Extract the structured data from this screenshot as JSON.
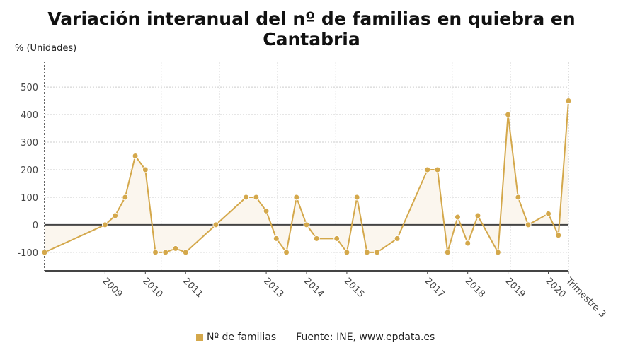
{
  "chart_data": {
    "type": "line",
    "title": "Variación interanual del nº de familias en quiebra en Cantabria",
    "ylabel": "% (Unidades)",
    "xlabel": "",
    "ylim": [
      -167,
      590
    ],
    "yticks": [
      -100,
      0,
      100,
      200,
      300,
      400,
      500
    ],
    "grid": true,
    "area_fill": true,
    "legend_position": "bottom",
    "first_period": "2007 T3",
    "xtick_labels": [
      {
        "label": "2009",
        "period": "2009 T1"
      },
      {
        "label": "2010",
        "period": "2010 T1"
      },
      {
        "label": "2011",
        "period": "2011 T1"
      },
      {
        "label": "2013",
        "period": "2013 T1"
      },
      {
        "label": "2014",
        "period": "2014 T1"
      },
      {
        "label": "2015",
        "period": "2015 T1"
      },
      {
        "label": "2017",
        "period": "2017 T1"
      },
      {
        "label": "2018",
        "period": "2018 T1"
      },
      {
        "label": "2019",
        "period": "2019 T1"
      },
      {
        "label": "2020",
        "period": "2020 T1"
      },
      {
        "label": "Trimestre 3",
        "period": "2020 T3"
      }
    ],
    "series": [
      {
        "name": "Nº de familias",
        "color": "#d4a84b",
        "points": [
          [
            "2007 T3",
            -100
          ],
          [
            "2009 T1",
            0
          ],
          [
            "2009 T2",
            33
          ],
          [
            "2009 T3",
            100
          ],
          [
            "2009 T4",
            250
          ],
          [
            "2010 T1",
            200
          ],
          [
            "2010 T2",
            -100
          ],
          [
            "2010 T3",
            -100
          ],
          [
            "2010 T4",
            -86
          ],
          [
            "2011 T1",
            -100
          ],
          [
            "2011 T4",
            0
          ],
          [
            "2012 T3",
            100
          ],
          [
            "2012 T4",
            100
          ],
          [
            "2013 T1",
            50
          ],
          [
            "2013 T2",
            -50
          ],
          [
            "2013 T3",
            -100
          ],
          [
            "2013 T4",
            100
          ],
          [
            "2014 T1",
            0
          ],
          [
            "2014 T2",
            -50
          ],
          [
            "2014 T4",
            -50
          ],
          [
            "2015 T1",
            -100
          ],
          [
            "2015 T2",
            100
          ],
          [
            "2015 T3",
            -100
          ],
          [
            "2015 T4",
            -100
          ],
          [
            "2016 T2",
            -50
          ],
          [
            "2017 T1",
            200
          ],
          [
            "2017 T2",
            200
          ],
          [
            "2017 T3",
            -100
          ],
          [
            "2017 T4",
            28
          ],
          [
            "2018 T1",
            -67
          ],
          [
            "2018 T2",
            33
          ],
          [
            "2018 T4",
            -100
          ],
          [
            "2019 T1",
            400
          ],
          [
            "2019 T2",
            100
          ],
          [
            "2019 T3",
            0
          ],
          [
            "2020 T1",
            40
          ],
          [
            "2020 T2",
            -38
          ],
          [
            "2020 T3",
            450
          ]
        ]
      }
    ]
  },
  "legend": {
    "label": "Nº de familias",
    "color": "#d4a84b"
  },
  "source": "Fuente: INE, www.epdata.es"
}
